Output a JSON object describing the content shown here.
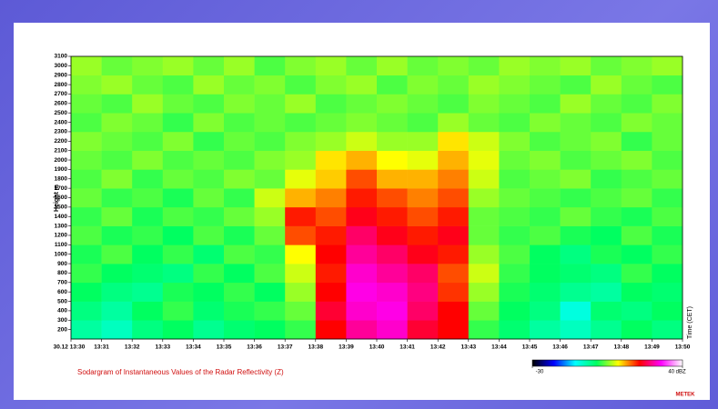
{
  "chart_data": {
    "type": "heatmap",
    "title": "Sodargram of Instantaneous Values of the Radar Reflectivity (Z)",
    "y_label": "Height m",
    "x_label": "Time (CET)",
    "logo": "METEK",
    "x_labels": [
      "30.12 13:30",
      "13:31",
      "13:32",
      "13:33",
      "13:34",
      "13:35",
      "13:36",
      "13:37",
      "13:38",
      "13:39",
      "13:40",
      "13:41",
      "13:42",
      "13:43",
      "13:44",
      "13:45",
      "13:46",
      "13:47",
      "13:48",
      "13:49",
      "13:50"
    ],
    "y": [
      200,
      400,
      600,
      800,
      1000,
      1200,
      1400,
      1600,
      1800,
      2000,
      2200,
      2400,
      2600,
      2800,
      3000
    ],
    "ylim": [
      100,
      3100
    ],
    "yticks": [
      200,
      300,
      400,
      500,
      600,
      700,
      800,
      900,
      1000,
      1100,
      1200,
      1300,
      1400,
      1500,
      1600,
      1700,
      1800,
      1900,
      2000,
      2100,
      2200,
      2300,
      2400,
      2500,
      2600,
      2700,
      2800,
      2900,
      3000,
      3100
    ],
    "zlim": [
      -30,
      40
    ],
    "zticks": [
      -30,
      {
        "value": 40,
        "label": "40 dBZ"
      }
    ],
    "colorscale": [
      "#000000",
      "#0000ff",
      "#00ffff",
      "#00ff60",
      "#ffff00",
      "#ff0000",
      "#ff00ff",
      "#ffffff"
    ],
    "z": [
      [
        -4,
        -6,
        -2,
        0,
        -3,
        -1,
        0,
        2,
        20,
        26,
        28,
        22,
        20,
        2,
        -1,
        -4,
        -6,
        -3,
        0,
        -2
      ],
      [
        -2,
        -4,
        0,
        2,
        -1,
        1,
        2,
        4,
        22,
        28,
        29,
        24,
        20,
        4,
        0,
        -2,
        -8,
        -1,
        -2,
        0
      ],
      [
        0,
        -2,
        -3,
        1,
        0,
        2,
        0,
        6,
        20,
        29,
        28,
        25,
        18,
        6,
        1,
        -1,
        -3,
        -4,
        0,
        -1
      ],
      [
        2,
        0,
        -1,
        -2,
        2,
        0,
        3,
        8,
        19,
        28,
        26,
        24,
        17,
        8,
        2,
        0,
        -1,
        -2,
        2,
        0
      ],
      [
        1,
        3,
        0,
        2,
        -1,
        3,
        2,
        10,
        20,
        26,
        24,
        21,
        19,
        6,
        3,
        0,
        -2,
        1,
        0,
        2
      ],
      [
        3,
        1,
        2,
        0,
        3,
        1,
        4,
        17,
        19,
        24,
        21,
        19,
        21,
        4,
        2,
        3,
        1,
        0,
        3,
        1
      ],
      [
        2,
        4,
        1,
        3,
        2,
        4,
        6,
        19,
        17,
        21,
        19,
        17,
        19,
        4,
        3,
        2,
        4,
        2,
        1,
        3
      ],
      [
        4,
        2,
        3,
        1,
        4,
        2,
        8,
        13,
        15,
        19,
        17,
        15,
        17,
        6,
        4,
        3,
        2,
        3,
        4,
        2
      ],
      [
        3,
        5,
        2,
        4,
        3,
        5,
        4,
        9,
        12,
        17,
        13,
        13,
        15,
        8,
        3,
        4,
        5,
        2,
        3,
        4
      ],
      [
        4,
        3,
        5,
        3,
        4,
        3,
        5,
        6,
        11,
        13,
        10,
        9,
        13,
        9,
        4,
        5,
        3,
        4,
        5,
        3
      ],
      [
        5,
        4,
        3,
        5,
        2,
        4,
        3,
        5,
        6,
        8,
        6,
        6,
        11,
        8,
        5,
        3,
        4,
        5,
        2,
        4
      ],
      [
        3,
        5,
        4,
        2,
        5,
        3,
        4,
        3,
        4,
        5,
        4,
        3,
        6,
        4,
        3,
        5,
        4,
        3,
        5,
        4
      ],
      [
        4,
        3,
        6,
        4,
        3,
        5,
        4,
        6,
        3,
        4,
        5,
        4,
        3,
        5,
        4,
        3,
        6,
        4,
        3,
        5
      ],
      [
        5,
        6,
        4,
        3,
        6,
        4,
        5,
        3,
        5,
        6,
        3,
        5,
        4,
        6,
        5,
        4,
        3,
        6,
        4,
        3
      ],
      [
        6,
        4,
        5,
        6,
        4,
        6,
        3,
        5,
        6,
        4,
        6,
        4,
        5,
        4,
        6,
        5,
        6,
        4,
        5,
        6
      ]
    ]
  }
}
